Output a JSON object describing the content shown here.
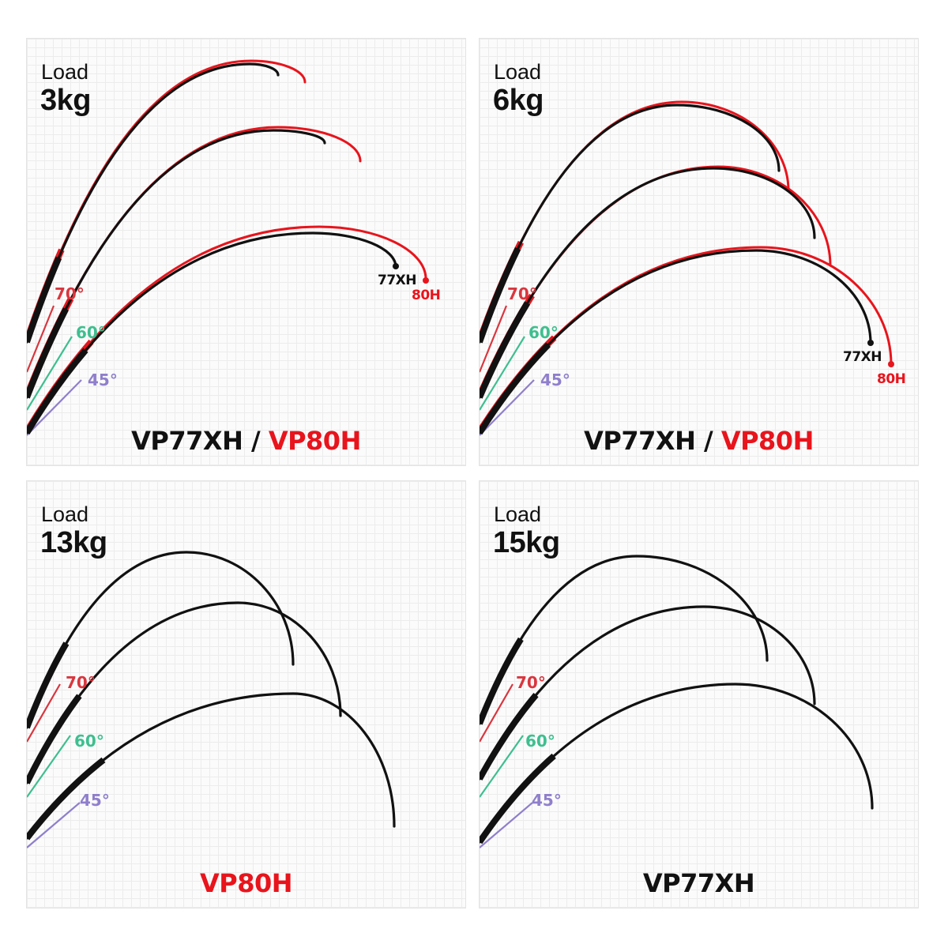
{
  "colors": {
    "model_a": "#111111",
    "model_b": "#e8141c",
    "angle_70": "#d9363e",
    "angle_60": "#3dbf8f",
    "angle_45": "#8f7fcc"
  },
  "angles": [
    "70°",
    "60°",
    "45°"
  ],
  "panels": [
    {
      "load_label": "Load",
      "load_value": "3kg",
      "caption_a": "VP77XH",
      "caption_sep": " / ",
      "caption_b": "VP80H",
      "tip_a": "77XH",
      "tip_b": "80H",
      "rods": [
        "VP77XH",
        "VP80H"
      ]
    },
    {
      "load_label": "Load",
      "load_value": "6kg",
      "caption_a": "VP77XH",
      "caption_sep": " / ",
      "caption_b": "VP80H",
      "tip_a": "77XH",
      "tip_b": "80H",
      "rods": [
        "VP77XH",
        "VP80H"
      ]
    },
    {
      "load_label": "Load",
      "load_value": "13kg",
      "caption_a": "",
      "caption_sep": "",
      "caption_b": "VP80H",
      "rods": [
        "VP80H"
      ]
    },
    {
      "load_label": "Load",
      "load_value": "15kg",
      "caption_a": "VP77XH",
      "caption_sep": "",
      "caption_b": "",
      "rods": [
        "VP77XH"
      ]
    }
  ]
}
